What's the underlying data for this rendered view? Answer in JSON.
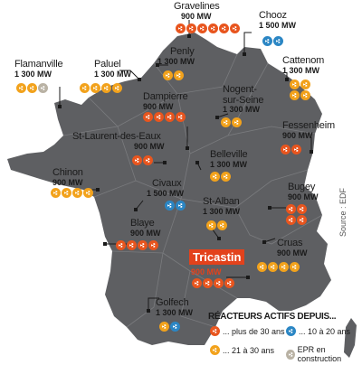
{
  "colors": {
    "over_30": "#e8551e",
    "y21_30": "#f2a21c",
    "y10_20": "#2b86c4",
    "epr": "#b9b2a4",
    "tricastin": "#e3421c",
    "land": "#5e5f62"
  },
  "plants": [
    {
      "id": "gravelines",
      "name": "Gravelines",
      "mw": "900 MW",
      "reactors": [
        "o30",
        "o30",
        "o30",
        "o30",
        "o30",
        "o30"
      ]
    },
    {
      "id": "chooz",
      "name": "Chooz",
      "mw": "1 500 MW",
      "reactors": [
        "o10",
        "o10"
      ]
    },
    {
      "id": "flamanville",
      "name": "Flamanville",
      "mw": "1 300 MW",
      "reactors": [
        "o21",
        "o21",
        "epr"
      ]
    },
    {
      "id": "paluel",
      "name": "Paluel",
      "mw": "1 300 MW",
      "reactors": [
        "o21",
        "o21",
        "o21",
        "o21"
      ]
    },
    {
      "id": "penly",
      "name": "Penly",
      "mw": "1 300 MW",
      "reactors": [
        "o21",
        "o21"
      ]
    },
    {
      "id": "cattenom",
      "name": "Cattenom",
      "mw": "1 300 MW",
      "reactors": [
        "o21",
        "o21",
        "o21",
        "o21"
      ]
    },
    {
      "id": "dampierre",
      "name": "Dampierre",
      "mw": "900 MW",
      "reactors": [
        "o30",
        "o30",
        "o30",
        "o30"
      ]
    },
    {
      "id": "nogent",
      "name": "Nogent-\nsur-Seine",
      "mw": "1 300 MW",
      "reactors": [
        "o21",
        "o21"
      ]
    },
    {
      "id": "fessenheim",
      "name": "Fessenheim",
      "mw": "900 MW",
      "reactors": [
        "o30",
        "o30"
      ]
    },
    {
      "id": "stlaurent",
      "name": "St-Laurent-des-Eaux",
      "mw": "900 MW",
      "reactors": [
        "o30",
        "o30"
      ]
    },
    {
      "id": "belleville",
      "name": "Belleville",
      "mw": "1 300 MW",
      "reactors": [
        "o21",
        "o21"
      ]
    },
    {
      "id": "chinon",
      "name": "Chinon",
      "mw": "900 MW",
      "reactors": [
        "o21",
        "o21",
        "o21",
        "o21"
      ]
    },
    {
      "id": "civaux",
      "name": "Civaux",
      "mw": "1 500 MW",
      "reactors": [
        "o10",
        "o10"
      ]
    },
    {
      "id": "bugey",
      "name": "Bugey",
      "mw": "900 MW",
      "reactors": [
        "o30",
        "o30",
        "o30",
        "o30"
      ]
    },
    {
      "id": "stalban",
      "name": "St-Alban",
      "mw": "1 300 MW",
      "reactors": [
        "o21",
        "o21"
      ]
    },
    {
      "id": "blaye",
      "name": "Blaye",
      "mw": "900 MW",
      "reactors": [
        "o30",
        "o30",
        "o30",
        "o30"
      ]
    },
    {
      "id": "cruas",
      "name": "Cruas",
      "mw": "900 MW",
      "reactors": [
        "o21",
        "o21",
        "o21",
        "o21"
      ]
    },
    {
      "id": "tricastin",
      "name": "Tricastin",
      "mw": "900 MW",
      "reactors": [
        "o30",
        "o30",
        "o30",
        "o30"
      ]
    },
    {
      "id": "golfech",
      "name": "Golfech",
      "mw": "1 300 MW",
      "reactors": [
        "o21",
        "o10"
      ]
    }
  ],
  "legend": {
    "title": "RÉACTEURS ACTIFS DEPUIS...",
    "over_30": "... plus de 30 ans",
    "y10_20": "... 10 à 20 ans",
    "y21_30": "... 21 à 30 ans",
    "epr": "EPR en construction"
  },
  "source": "Source : EDF"
}
